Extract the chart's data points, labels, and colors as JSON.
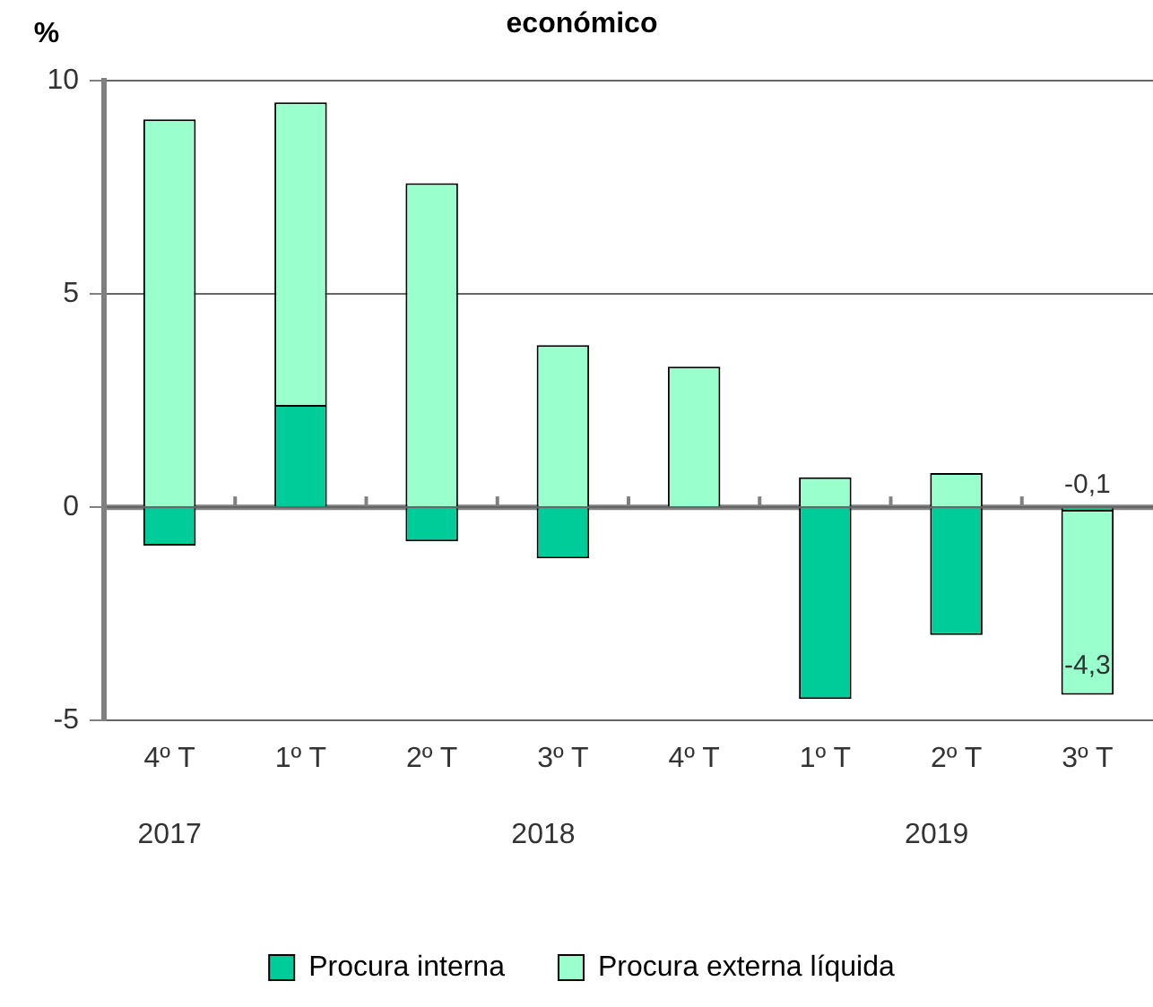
{
  "chart_data": {
    "type": "bar",
    "title": "económico",
    "ylabel": "%",
    "categories": [
      "4º T",
      "1º T",
      "2º T",
      "3º T",
      "4º T",
      "1º T",
      "2º T",
      "3º T"
    ],
    "series": [
      {
        "name": "Procura interna",
        "color": "#00cc99",
        "values": [
          -0.9,
          2.4,
          -0.8,
          -1.2,
          0,
          -4.5,
          -3.0,
          -0.1
        ],
        "value_labels": [
          null,
          null,
          null,
          null,
          null,
          null,
          null,
          "-0,1"
        ]
      },
      {
        "name": "Procura externa líquida",
        "color": "#99ffcc",
        "values": [
          9.1,
          7.1,
          7.6,
          3.8,
          3.3,
          0.7,
          0.8,
          -4.3
        ],
        "value_labels": [
          null,
          null,
          null,
          null,
          null,
          null,
          null,
          "-4,3"
        ]
      }
    ],
    "stacked": true,
    "ylim": [
      -5,
      10
    ],
    "yticks": [
      -5,
      0,
      5,
      10
    ],
    "grid": "y",
    "legend": "bottom",
    "annotations": [
      "2017",
      "2018",
      "2019"
    ]
  }
}
